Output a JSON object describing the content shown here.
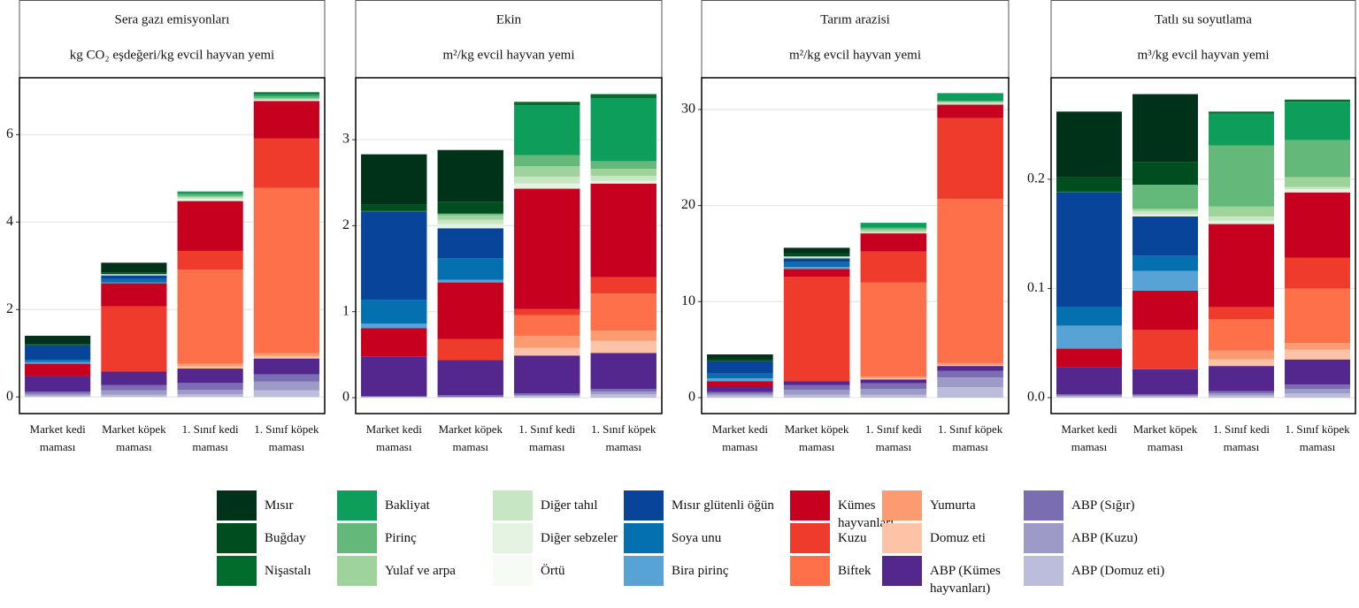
{
  "chart_data": [
    {
      "type": "stacked-bar",
      "title": "Sera gazı emisyonları",
      "subtitle": "kg CO₂ eşdeğeri/kg evcil hayvan yemi",
      "categories": [
        "Market kedi maması",
        "Market köpek maması",
        "1. Sınıf kedi maması",
        "1. Sınıf köpek maması"
      ],
      "ylim": [
        -0.38,
        7.3
      ],
      "yticks": [
        0,
        2,
        4,
        6
      ],
      "grid": true,
      "series": [
        {
          "name": "Mısır",
          "color": "#00321a",
          "values": [
            0.19,
            0.22,
            0,
            0
          ]
        },
        {
          "name": "Buğday",
          "color": "#004d20",
          "values": [
            0.03,
            0.04,
            0,
            0
          ]
        },
        {
          "name": "Nişastalı",
          "color": "#006d2c",
          "values": [
            0,
            0,
            0,
            0.04
          ]
        },
        {
          "name": "Bakliyat",
          "color": "#0c9e5a",
          "values": [
            0,
            0,
            0.06,
            0.05
          ]
        },
        {
          "name": "Pirinç",
          "color": "#63b87a",
          "values": [
            0,
            0,
            0.05,
            0.05
          ]
        },
        {
          "name": "Yulaf ve arpa",
          "color": "#9fd39c",
          "values": [
            0,
            0,
            0.03,
            0.03
          ]
        },
        {
          "name": "Diğer tahıl",
          "color": "#c7e6c3",
          "values": [
            0,
            0.03,
            0.03,
            0
          ]
        },
        {
          "name": "Diğer sebzeler",
          "color": "#e5f3e2",
          "values": [
            0,
            0,
            0.03,
            0.03
          ]
        },
        {
          "name": "Örtü",
          "color": "#f7fbf5",
          "values": [
            0,
            0,
            0.02,
            0
          ]
        },
        {
          "name": "Mısır glütenli öğün",
          "color": "#08449a",
          "values": [
            0.33,
            0.08,
            0,
            0
          ]
        },
        {
          "name": "Soya unu",
          "color": "#0570b0",
          "values": [
            0.05,
            0.08,
            0,
            0
          ]
        },
        {
          "name": "Bira pirinç",
          "color": "#58a3d5",
          "values": [
            0.04,
            0.02,
            0,
            0
          ]
        },
        {
          "name": "Kümes hayvanları",
          "color": "#c70020",
          "values": [
            0.28,
            0.53,
            1.14,
            0.86
          ]
        },
        {
          "name": "Kuzu",
          "color": "#ee3b2c",
          "values": [
            0,
            1.49,
            0.43,
            1.13
          ]
        },
        {
          "name": "Biftek",
          "color": "#fd7049",
          "values": [
            0,
            0,
            2.15,
            3.78
          ]
        },
        {
          "name": "Yumurta",
          "color": "#fc9a72",
          "values": [
            0,
            0,
            0.06,
            0.07
          ]
        },
        {
          "name": "Domuz eti",
          "color": "#fdc3a6",
          "values": [
            0,
            0,
            0.05,
            0.05
          ]
        },
        {
          "name": "ABP (Kümes hayvanları)",
          "color": "#54278f",
          "values": [
            0.36,
            0.31,
            0.33,
            0.36
          ]
        },
        {
          "name": "ABP (Sığır)",
          "color": "#7a6db2",
          "values": [
            0.05,
            0.12,
            0.16,
            0.17
          ]
        },
        {
          "name": "ABP (Kuzu)",
          "color": "#9e9ac8",
          "values": [
            0.04,
            0.1,
            0.1,
            0.2
          ]
        },
        {
          "name": "ABP (Domuz eti)",
          "color": "#bcbddc",
          "values": [
            0.03,
            0.05,
            0.06,
            0.15
          ]
        }
      ]
    },
    {
      "type": "stacked-bar",
      "title": "Ekin",
      "subtitle": "m²/kg evcil hayvan yemi",
      "categories": [
        "Market kedi maması",
        "Market köpek maması",
        "1. Sınıf kedi maması",
        "1. Sınıf köpek maması"
      ],
      "ylim": [
        -0.185,
        3.72
      ],
      "yticks": [
        0,
        1,
        2,
        3
      ],
      "grid": true,
      "series": [
        {
          "name": "Mısır",
          "color": "#00321a",
          "values": [
            0.58,
            0.6,
            0,
            0
          ]
        },
        {
          "name": "Buğday",
          "color": "#004d20",
          "values": [
            0.08,
            0.14,
            0,
            0
          ]
        },
        {
          "name": "Nişastalı",
          "color": "#006d2c",
          "values": [
            0.01,
            0,
            0.04,
            0.05
          ]
        },
        {
          "name": "Bakliyat",
          "color": "#0c9e5a",
          "values": [
            0,
            0,
            0.58,
            0.73
          ]
        },
        {
          "name": "Pirinç",
          "color": "#63b87a",
          "values": [
            0,
            0.02,
            0.13,
            0.09
          ]
        },
        {
          "name": "Yulaf ve arpa",
          "color": "#9fd39c",
          "values": [
            0,
            0.05,
            0.12,
            0.08
          ]
        },
        {
          "name": "Diğer tahıl",
          "color": "#c7e6c3",
          "values": [
            0,
            0.05,
            0.08,
            0.06
          ]
        },
        {
          "name": "Diğer sebzeler",
          "color": "#e5f3e2",
          "values": [
            0,
            0.05,
            0.06,
            0.03
          ]
        },
        {
          "name": "Örtü",
          "color": "#f7fbf5",
          "values": [
            0,
            0,
            0,
            0
          ]
        },
        {
          "name": "Mısır glütenli öğün",
          "color": "#08449a",
          "values": [
            1.02,
            0.35,
            0,
            0
          ]
        },
        {
          "name": "Soya unu",
          "color": "#0570b0",
          "values": [
            0.28,
            0.25,
            0,
            0
          ]
        },
        {
          "name": "Bira pirinç",
          "color": "#58a3d5",
          "values": [
            0.05,
            0.03,
            0,
            0
          ]
        },
        {
          "name": "Kümes hayvanları",
          "color": "#c70020",
          "values": [
            0.33,
            0.66,
            1.4,
            1.09
          ]
        },
        {
          "name": "Kuzu",
          "color": "#ee3b2c",
          "values": [
            0,
            0.24,
            0.07,
            0.19
          ]
        },
        {
          "name": "Biftek",
          "color": "#fd7049",
          "values": [
            0,
            0,
            0.24,
            0.43
          ]
        },
        {
          "name": "Yumurta",
          "color": "#fc9a72",
          "values": [
            0,
            0,
            0.14,
            0.12
          ]
        },
        {
          "name": "Domuz eti",
          "color": "#fdc3a6",
          "values": [
            0,
            0,
            0.09,
            0.14
          ]
        },
        {
          "name": "ABP (Kümes hayvanları)",
          "color": "#54278f",
          "values": [
            0.46,
            0.41,
            0.44,
            0.42
          ]
        },
        {
          "name": "ABP (Sığır)",
          "color": "#7a6db2",
          "values": [
            0.01,
            0.02,
            0.02,
            0.03
          ]
        },
        {
          "name": "ABP (Kuzu)",
          "color": "#9e9ac8",
          "values": [
            0,
            0,
            0.01,
            0.03
          ]
        },
        {
          "name": "ABP (Domuz eti)",
          "color": "#bcbddc",
          "values": [
            0.01,
            0.01,
            0.02,
            0.04
          ]
        }
      ]
    },
    {
      "type": "stacked-bar",
      "title": "Tarım arazisi",
      "subtitle": "m²/kg evcil hayvan yemi",
      "categories": [
        "Market kedi maması",
        "Market köpek maması",
        "1. Sınıf kedi maması",
        "1. Sınıf köpek maması"
      ],
      "ylim": [
        -1.66,
        33.3
      ],
      "yticks": [
        0,
        10,
        20,
        30
      ],
      "grid": true,
      "series": [
        {
          "name": "Mısır",
          "color": "#00321a",
          "values": [
            0.5,
            0.6,
            0,
            0
          ]
        },
        {
          "name": "Buğday",
          "color": "#004d20",
          "values": [
            0.2,
            0.3,
            0,
            0
          ]
        },
        {
          "name": "Nişastalı",
          "color": "#006d2c",
          "values": [
            0,
            0,
            0,
            0
          ]
        },
        {
          "name": "Bakliyat",
          "color": "#0c9e5a",
          "values": [
            0,
            0,
            0.5,
            0.8
          ]
        },
        {
          "name": "Pirinç",
          "color": "#63b87a",
          "values": [
            0,
            0,
            0.2,
            0.1
          ]
        },
        {
          "name": "Yulaf ve arpa",
          "color": "#9fd39c",
          "values": [
            0,
            0,
            0.2,
            0.1
          ]
        },
        {
          "name": "Diğer tahıl",
          "color": "#c7e6c3",
          "values": [
            0,
            0.2,
            0.2,
            0.2
          ]
        },
        {
          "name": "Diğer sebzeler",
          "color": "#e5f3e2",
          "values": [
            0,
            0,
            0,
            0
          ]
        },
        {
          "name": "Örtü",
          "color": "#f7fbf5",
          "values": [
            0,
            0,
            0,
            0
          ]
        },
        {
          "name": "Mısır glütenli öğün",
          "color": "#08449a",
          "values": [
            1.3,
            0.4,
            0,
            0
          ]
        },
        {
          "name": "Soya unu",
          "color": "#0570b0",
          "values": [
            0.5,
            0.5,
            0,
            0
          ]
        },
        {
          "name": "Bira pirinç",
          "color": "#58a3d5",
          "values": [
            0.3,
            0.2,
            0,
            0
          ]
        },
        {
          "name": "Kümes hayvanları",
          "color": "#c70020",
          "values": [
            0.6,
            0.8,
            1.9,
            1.4
          ]
        },
        {
          "name": "Kuzu",
          "color": "#ee3b2c",
          "values": [
            0,
            10.9,
            3.2,
            8.4
          ]
        },
        {
          "name": "Biftek",
          "color": "#fd7049",
          "values": [
            0,
            0,
            9.8,
            17.1
          ]
        },
        {
          "name": "Yumurta",
          "color": "#fc9a72",
          "values": [
            0,
            0,
            0.2,
            0.2
          ]
        },
        {
          "name": "Domuz eti",
          "color": "#fdc3a6",
          "values": [
            0,
            0,
            0.1,
            0.1
          ]
        },
        {
          "name": "ABP (Kümes hayvanları)",
          "color": "#54278f",
          "values": [
            0.5,
            0.4,
            0.4,
            0.5
          ]
        },
        {
          "name": "ABP (Sığır)",
          "color": "#7a6db2",
          "values": [
            0.2,
            0.5,
            0.6,
            0.7
          ]
        },
        {
          "name": "ABP (Kuzu)",
          "color": "#9e9ac8",
          "values": [
            0.2,
            0.5,
            0.6,
            1.0
          ]
        },
        {
          "name": "ABP (Domuz eti)",
          "color": "#bcbddc",
          "values": [
            0.2,
            0.3,
            0.3,
            1.1
          ]
        }
      ]
    },
    {
      "type": "stacked-bar",
      "title": "Tatlı su soyutlama",
      "subtitle": "m³/kg evcil hayvan yemi",
      "categories": [
        "Market kedi maması",
        "Market köpek maması",
        "1. Sınıf kedi maması",
        "1. Sınıf köpek maması"
      ],
      "ylim": [
        -0.0146,
        0.293
      ],
      "yticks": [
        {
          "value": 0,
          "label": "0.0"
        },
        0.1,
        0.2
      ],
      "grid": true,
      "series": [
        {
          "name": "Mısır",
          "color": "#00321a",
          "values": [
            0.06,
            0.062,
            0,
            0
          ]
        },
        {
          "name": "Buğday",
          "color": "#004d20",
          "values": [
            0.013,
            0.021,
            0,
            0
          ]
        },
        {
          "name": "Nişastalı",
          "color": "#006d2c",
          "values": [
            0.001,
            0,
            0.002,
            0.002
          ]
        },
        {
          "name": "Bakliyat",
          "color": "#0c9e5a",
          "values": [
            0,
            0,
            0.029,
            0.035
          ]
        },
        {
          "name": "Pirinç",
          "color": "#63b87a",
          "values": [
            0,
            0.022,
            0.056,
            0.034
          ]
        },
        {
          "name": "Yulaf ve arpa",
          "color": "#9fd39c",
          "values": [
            0,
            0.002,
            0.009,
            0.009
          ]
        },
        {
          "name": "Diğer tahıl",
          "color": "#c7e6c3",
          "values": [
            0,
            0.003,
            0.004,
            0.002
          ]
        },
        {
          "name": "Diğer sebzeler",
          "color": "#e5f3e2",
          "values": [
            0,
            0.002,
            0.003,
            0.003
          ]
        },
        {
          "name": "Örtü",
          "color": "#f7fbf5",
          "values": [
            0,
            0,
            0,
            0
          ]
        },
        {
          "name": "Mısır glütenli öğün",
          "color": "#08449a",
          "values": [
            0.105,
            0.036,
            0,
            0
          ]
        },
        {
          "name": "Soya unu",
          "color": "#0570b0",
          "values": [
            0.017,
            0.014,
            0,
            0
          ]
        },
        {
          "name": "Bira pirinç",
          "color": "#58a3d5",
          "values": [
            0.021,
            0.018,
            0,
            0
          ]
        },
        {
          "name": "Kümes hayvanları",
          "color": "#c70020",
          "values": [
            0.017,
            0.036,
            0.076,
            0.06
          ]
        },
        {
          "name": "Kuzu",
          "color": "#ee3b2c",
          "values": [
            0,
            0.036,
            0.011,
            0.028
          ]
        },
        {
          "name": "Biftek",
          "color": "#fd7049",
          "values": [
            0,
            0,
            0.029,
            0.05
          ]
        },
        {
          "name": "Yumurta",
          "color": "#fc9a72",
          "values": [
            0,
            0,
            0.008,
            0.006
          ]
        },
        {
          "name": "Domuz eti",
          "color": "#fdc3a6",
          "values": [
            0,
            0,
            0.006,
            0.009
          ]
        },
        {
          "name": "ABP (Kümes hayvanları)",
          "color": "#54278f",
          "values": [
            0.025,
            0.023,
            0.023,
            0.023
          ]
        },
        {
          "name": "ABP (Sığır)",
          "color": "#7a6db2",
          "values": [
            0.001,
            0.001,
            0.002,
            0.004
          ]
        },
        {
          "name": "ABP (Kuzu)",
          "color": "#9e9ac8",
          "values": [
            0.001,
            0.001,
            0.002,
            0.004
          ]
        },
        {
          "name": "ABP (Domuz eti)",
          "color": "#bcbddc",
          "values": [
            0.001,
            0.001,
            0.002,
            0.004
          ]
        }
      ]
    }
  ]
}
